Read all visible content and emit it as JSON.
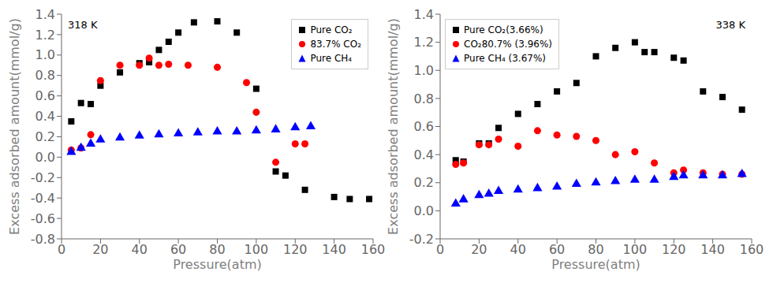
{
  "chart_data": [
    {
      "type": "scatter",
      "title": "318 K",
      "x_label": "Pressure(atm)",
      "y_label": "Excess adsorbed amount(mmol/g)",
      "xlim": [
        0,
        160
      ],
      "ylim": [
        -0.8,
        1.4
      ],
      "xticks": [
        0,
        20,
        40,
        60,
        80,
        100,
        120,
        140,
        160
      ],
      "yticks": [
        -0.8,
        -0.6,
        -0.4,
        -0.2,
        {
          "value": 0.0,
          "label": "0.0"
        },
        0.2,
        0.4,
        0.6,
        0.8,
        {
          "value": 1.0,
          "label": "1.0"
        },
        1.2,
        1.4
      ],
      "grid": false,
      "legend": "upper right",
      "series": [
        {
          "name": "Pure CO₂",
          "color": "black",
          "marker": "square",
          "x": [
            5,
            10,
            15,
            20,
            30,
            40,
            45,
            50,
            55,
            60,
            68,
            80,
            90,
            100,
            110,
            115,
            125,
            140,
            148,
            158
          ],
          "values": [
            0.35,
            0.53,
            0.52,
            0.7,
            0.83,
            0.92,
            0.93,
            1.05,
            1.13,
            1.22,
            1.32,
            1.33,
            1.22,
            0.67,
            -0.14,
            -0.18,
            -0.32,
            -0.39,
            -0.41,
            -0.41
          ]
        },
        {
          "name": "83.7% CO₂",
          "color": "red",
          "marker": "circle",
          "x": [
            5,
            10,
            15,
            20,
            30,
            40,
            45,
            50,
            55,
            65,
            80,
            95,
            100,
            110,
            120,
            125
          ],
          "values": [
            0.07,
            0.09,
            0.22,
            0.75,
            0.9,
            0.9,
            0.97,
            0.9,
            0.91,
            0.9,
            0.88,
            0.73,
            0.44,
            -0.05,
            0.13,
            0.13
          ]
        },
        {
          "name": "Pure CH₄",
          "color": "blue",
          "marker": "triangle",
          "x": [
            5,
            10,
            15,
            20,
            30,
            40,
            50,
            60,
            70,
            80,
            90,
            100,
            110,
            120,
            128
          ],
          "values": [
            0.05,
            0.09,
            0.13,
            0.17,
            0.19,
            0.21,
            0.22,
            0.23,
            0.24,
            0.25,
            0.25,
            0.26,
            0.27,
            0.29,
            0.3
          ]
        }
      ]
    },
    {
      "type": "scatter",
      "title": "338 K",
      "x_label": "Pressure(atm)",
      "y_label": "Excess adsorbed amount(mmol/g)",
      "xlim": [
        0,
        160
      ],
      "ylim": [
        -0.2,
        1.4
      ],
      "xticks": [
        0,
        20,
        40,
        60,
        80,
        100,
        120,
        140,
        160
      ],
      "yticks": [
        -0.2,
        {
          "value": 0.0,
          "label": "0.0"
        },
        0.2,
        0.4,
        0.6,
        0.8,
        {
          "value": 1.0,
          "label": "1.0"
        },
        1.2,
        1.4
      ],
      "grid": false,
      "legend": "upper left",
      "series": [
        {
          "name": "Pure CO₂(3.66%)",
          "color": "black",
          "marker": "square",
          "x": [
            8,
            12,
            20,
            25,
            30,
            40,
            50,
            60,
            70,
            80,
            90,
            100,
            105,
            110,
            120,
            125,
            135,
            145,
            155
          ],
          "values": [
            0.36,
            0.35,
            0.48,
            0.48,
            0.59,
            0.69,
            0.76,
            0.85,
            0.91,
            1.1,
            1.16,
            1.2,
            1.13,
            1.13,
            1.09,
            1.07,
            0.85,
            0.81,
            0.72
          ]
        },
        {
          "name": "CO₂80.7% (3.96%)",
          "color": "red",
          "marker": "circle",
          "x": [
            8,
            12,
            20,
            25,
            30,
            40,
            50,
            60,
            70,
            80,
            90,
            100,
            110,
            120,
            125,
            135,
            145,
            155
          ],
          "values": [
            0.33,
            0.34,
            0.47,
            0.47,
            0.51,
            0.46,
            0.57,
            0.54,
            0.53,
            0.5,
            0.4,
            0.42,
            0.34,
            0.27,
            0.29,
            0.27,
            0.26,
            0.26
          ]
        },
        {
          "name": "Pure CH₄ (3.67%)",
          "color": "blue",
          "marker": "triangle",
          "x": [
            8,
            12,
            20,
            25,
            30,
            40,
            50,
            60,
            70,
            80,
            90,
            100,
            110,
            120,
            125,
            135,
            145,
            155
          ],
          "values": [
            0.05,
            0.08,
            0.11,
            0.12,
            0.14,
            0.15,
            0.16,
            0.17,
            0.19,
            0.2,
            0.21,
            0.22,
            0.22,
            0.24,
            0.25,
            0.25,
            0.25,
            0.26
          ]
        }
      ]
    }
  ]
}
